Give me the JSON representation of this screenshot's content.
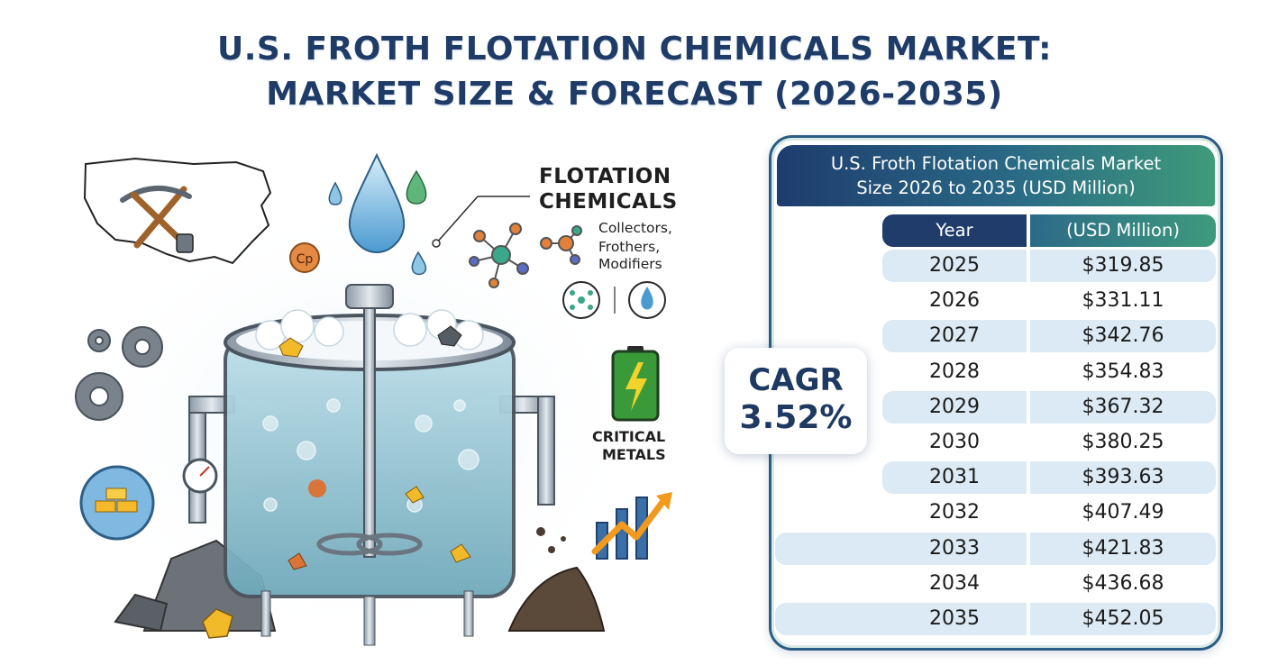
{
  "title": {
    "line1": "U.S. FROTH FLOTATION CHEMICALS MARKET:",
    "line2": "MARKET SIZE & FORECAST (2026-2035)"
  },
  "illustration": {
    "flotation_label_line1": "FLOTATION",
    "flotation_label_line2": "CHEMICALS",
    "sub_labels": [
      "Collectors,",
      "Frothers,",
      "Modifiers"
    ],
    "critical_line1": "CRITICAL",
    "critical_line2": "METALS",
    "copper_symbol": "Cp"
  },
  "cagr": {
    "label": "CAGR",
    "value": "3.52%"
  },
  "table": {
    "title_line1": "U.S. Froth Flotation Chemicals Market",
    "title_line2": "Size 2026 to 2035 (USD Million)",
    "col_year": "Year",
    "col_value": "(USD Million)",
    "rows": [
      {
        "year": "2025",
        "value": "$319.85"
      },
      {
        "year": "2026",
        "value": "$331.11"
      },
      {
        "year": "2027",
        "value": "$342.76"
      },
      {
        "year": "2028",
        "value": "$354.83"
      },
      {
        "year": "2029",
        "value": "$367.32"
      },
      {
        "year": "2030",
        "value": "$380.25"
      },
      {
        "year": "2031",
        "value": "$393.63"
      },
      {
        "year": "2032",
        "value": "$407.49"
      },
      {
        "year": "2033",
        "value": "$421.83"
      },
      {
        "year": "2034",
        "value": "$436.68"
      },
      {
        "year": "2035",
        "value": "$452.05"
      }
    ]
  },
  "colors": {
    "title": "#1f3c68",
    "header_dark": "#1e3c6e",
    "header_green": "#3f9b7a",
    "row_shade": "#dbeaf4",
    "accent_orange": "#f29a1d"
  },
  "chart_data": {
    "type": "table",
    "title": "U.S. Froth Flotation Chemicals Market Size 2026 to 2035 (USD Million)",
    "columns": [
      "Year",
      "(USD Million)"
    ],
    "categories": [
      "2025",
      "2026",
      "2027",
      "2028",
      "2029",
      "2030",
      "2031",
      "2032",
      "2033",
      "2034",
      "2035"
    ],
    "values": [
      319.85,
      331.11,
      342.76,
      354.83,
      367.32,
      380.25,
      393.63,
      407.49,
      421.83,
      436.68,
      452.05
    ],
    "cagr_percent": 3.52
  }
}
